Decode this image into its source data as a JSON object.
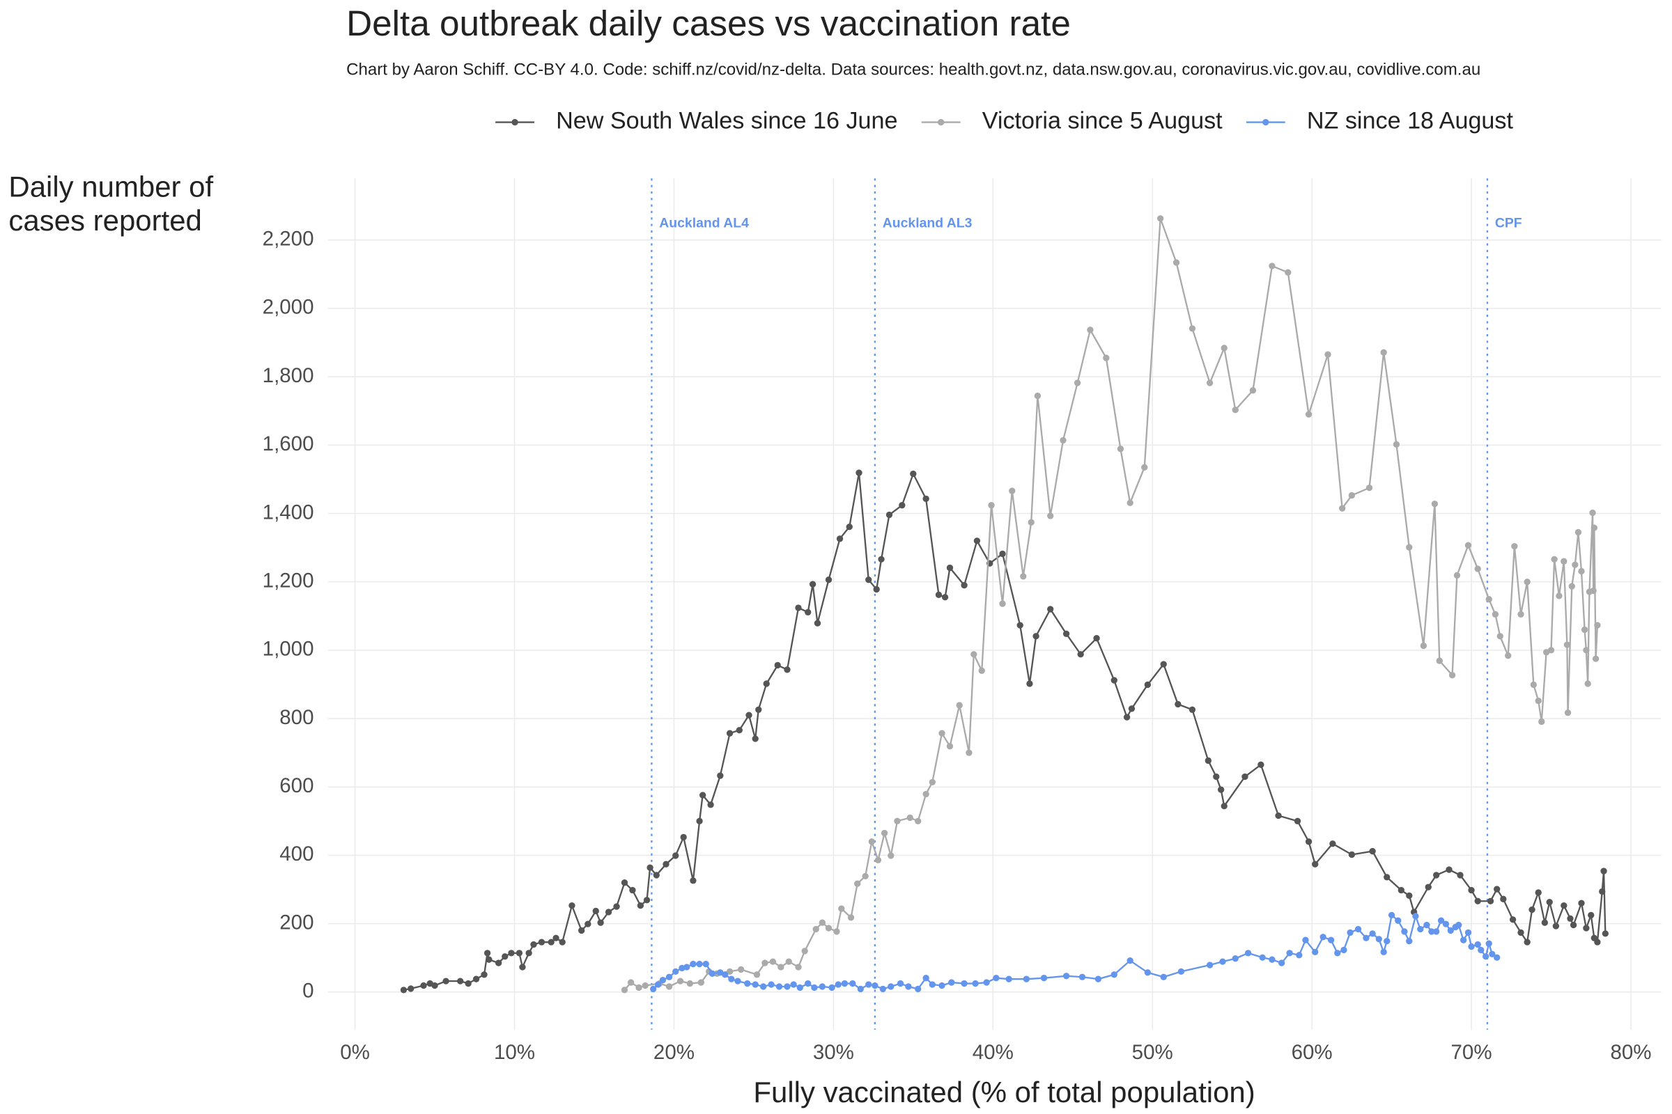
{
  "chart_data": {
    "type": "line",
    "title": "Delta outbreak daily cases vs vaccination rate",
    "subtitle": "Chart by Aaron Schiff. CC-BY 4.0. Code: schiff.nz/covid/nz-delta. Data sources: health.govt.nz, data.nsw.gov.au, coronavirus.vic.gov.au, covidlive.com.au",
    "x_label": "Fully vaccinated (% of total population)",
    "y_label": "Daily number of cases reported",
    "xlim": [
      -1.7,
      81.9
    ],
    "ylim": [
      -110,
      2380
    ],
    "xticks": [
      {
        "value": 0,
        "label": "0%"
      },
      {
        "value": 10,
        "label": "10%"
      },
      {
        "value": 20,
        "label": "20%"
      },
      {
        "value": 30,
        "label": "30%"
      },
      {
        "value": 40,
        "label": "40%"
      },
      {
        "value": 50,
        "label": "50%"
      },
      {
        "value": 60,
        "label": "60%"
      },
      {
        "value": 70,
        "label": "70%"
      },
      {
        "value": 80,
        "label": "80%"
      }
    ],
    "yticks": [
      0,
      200,
      400,
      600,
      800,
      {
        "value": 1000,
        "label": "1,000"
      },
      {
        "value": 1200,
        "label": "1,200"
      },
      {
        "value": 1400,
        "label": "1,400"
      },
      {
        "value": 1600,
        "label": "1,600"
      },
      {
        "value": 1800,
        "label": "1,800"
      },
      {
        "value": 2000,
        "label": "2,000"
      },
      {
        "value": 2200,
        "label": "2,200"
      }
    ],
    "grid": true,
    "legend": "top",
    "annotations": [
      {
        "x": 18.6,
        "label": "Auckland AL4"
      },
      {
        "x": 32.6,
        "label": "Auckland AL3"
      },
      {
        "x": 71.0,
        "label": "CPF"
      }
    ],
    "annotation_color": "#6495ed",
    "series": [
      {
        "name": "New South Wales since 16 June",
        "color": "#555555",
        "x": [
          3.05,
          3.5,
          4.3,
          4.7,
          5.0,
          5.7,
          6.6,
          7.1,
          7.6,
          8.1,
          8.3,
          8.4,
          9.0,
          9.4,
          9.8,
          10.3,
          10.5,
          10.9,
          11.2,
          11.7,
          12.3,
          12.6,
          13.0,
          13.6,
          14.2,
          14.6,
          15.1,
          15.4,
          15.9,
          16.4,
          16.9,
          17.4,
          17.9,
          18.3,
          18.5,
          18.9,
          19.5,
          20.1,
          20.6,
          21.2,
          21.6,
          21.8,
          22.3,
          22.9,
          23.5,
          24.1,
          24.7,
          25.1,
          25.3,
          25.8,
          26.5,
          27.1,
          27.8,
          28.4,
          28.7,
          29.0,
          29.7,
          30.4,
          31.0,
          31.6,
          32.2,
          32.7,
          33.0,
          33.5,
          34.3,
          35.0,
          35.8,
          36.6,
          37.0,
          37.3,
          38.2,
          39.0,
          39.8,
          40.6,
          41.7,
          42.3,
          42.7,
          43.6,
          44.6,
          45.5,
          46.5,
          47.6,
          48.4,
          48.7,
          49.7,
          50.7,
          51.6,
          52.5,
          53.5,
          54.0,
          54.3,
          54.5,
          55.8,
          56.8,
          57.9,
          59.1,
          59.8,
          60.2,
          61.3,
          62.5,
          63.8,
          64.7,
          65.6,
          66.1,
          66.4,
          67.3,
          67.8,
          68.6,
          69.3,
          70.0,
          70.4,
          71.2,
          71.6,
          72.0,
          72.6,
          73.1,
          73.5,
          73.8,
          74.2,
          74.6,
          74.9,
          75.3,
          75.8,
          76.2,
          76.4,
          76.9,
          77.2,
          77.5,
          77.7,
          77.9,
          78.2,
          78.3,
          78.4
        ],
        "values": [
          6,
          10,
          19,
          25,
          19,
          32,
          32,
          25,
          38,
          51,
          114,
          95,
          85,
          104,
          114,
          114,
          73,
          114,
          139,
          146,
          146,
          158,
          146,
          253,
          180,
          199,
          237,
          203,
          234,
          250,
          320,
          298,
          253,
          269,
          364,
          342,
          374,
          399,
          453,
          326,
          500,
          576,
          548,
          633,
          757,
          766,
          810,
          741,
          826,
          902,
          956,
          943,
          1124,
          1111,
          1193,
          1079,
          1206,
          1326,
          1361,
          1519,
          1206,
          1178,
          1266,
          1396,
          1424,
          1516,
          1443,
          1162,
          1155,
          1241,
          1190,
          1320,
          1254,
          1282,
          1073,
          902,
          1041,
          1120,
          1048,
          988,
          1035,
          912,
          804,
          829,
          899,
          959,
          842,
          826,
          677,
          630,
          592,
          544,
          630,
          665,
          516,
          500,
          440,
          374,
          434,
          402,
          412,
          336,
          298,
          282,
          234,
          307,
          342,
          358,
          342,
          298,
          266,
          266,
          301,
          272,
          212,
          174,
          146,
          241,
          291,
          203,
          263,
          193,
          253,
          215,
          196,
          260,
          187,
          225,
          158,
          146,
          294,
          354,
          171
        ]
      },
      {
        "name": "Victoria since 5 August",
        "color": "#aaaaaa",
        "x": [
          16.9,
          17.3,
          17.8,
          18.2,
          19.1,
          19.7,
          20.4,
          21.0,
          21.7,
          22.2,
          22.7,
          23.5,
          24.2,
          25.2,
          25.7,
          26.2,
          26.7,
          27.2,
          27.8,
          28.2,
          28.9,
          29.3,
          29.7,
          30.2,
          30.5,
          31.1,
          31.5,
          32.0,
          32.4,
          32.8,
          33.2,
          33.6,
          34.0,
          34.8,
          35.3,
          35.8,
          36.2,
          36.8,
          37.3,
          37.9,
          38.5,
          38.8,
          39.3,
          39.9,
          40.6,
          41.2,
          41.9,
          42.4,
          42.8,
          43.6,
          44.4,
          45.3,
          46.1,
          47.1,
          48.0,
          48.6,
          49.5,
          50.5,
          51.5,
          52.5,
          53.6,
          54.5,
          55.2,
          56.3,
          57.5,
          58.5,
          59.8,
          61.0,
          61.9,
          62.5,
          63.6,
          64.5,
          65.3,
          66.1,
          67.0,
          67.7,
          68.0,
          68.8,
          69.1,
          69.8,
          70.4,
          71.1,
          71.5,
          71.8,
          72.3,
          72.7,
          73.1,
          73.5,
          73.9,
          74.2,
          74.4,
          74.7,
          75.0,
          75.2,
          75.5,
          75.8,
          76.0,
          76.05,
          76.3,
          76.5,
          76.7,
          76.9,
          77.1,
          77.2,
          77.3,
          77.4,
          77.6,
          77.65,
          77.7,
          77.8,
          77.9
        ],
        "values": [
          6,
          28,
          13,
          19,
          25,
          16,
          32,
          25,
          28,
          60,
          54,
          60,
          66,
          51,
          85,
          89,
          73,
          89,
          73,
          120,
          184,
          203,
          187,
          177,
          244,
          218,
          317,
          339,
          440,
          386,
          465,
          399,
          500,
          510,
          500,
          579,
          614,
          757,
          719,
          839,
          700,
          988,
          940,
          1424,
          1136,
          1466,
          1216,
          1374,
          1744,
          1393,
          1614,
          1782,
          1937,
          1855,
          1589,
          1431,
          1535,
          2263,
          2134,
          1941,
          1782,
          1884,
          1703,
          1760,
          2124,
          2105,
          1690,
          1865,
          1415,
          1453,
          1475,
          1871,
          1602,
          1301,
          1013,
          1428,
          969,
          927,
          1219,
          1307,
          1238,
          1149,
          1105,
          1041,
          984,
          1304,
          1105,
          1200,
          899,
          852,
          791,
          994,
          1000,
          1266,
          1159,
          1260,
          1016,
          817,
          1187,
          1250,
          1345,
          1231,
          1060,
          1000,
          902,
          1171,
          1402,
          1174,
          1358,
          975,
          1073
        ]
      },
      {
        "name": "NZ since 18 August",
        "color": "#6495ed",
        "x": [
          18.7,
          19.0,
          19.3,
          19.7,
          20.1,
          20.5,
          20.8,
          21.2,
          21.6,
          22.0,
          22.4,
          22.9,
          23.2,
          23.6,
          24.0,
          24.6,
          25.1,
          25.6,
          26.1,
          26.6,
          27.1,
          27.5,
          27.9,
          28.4,
          28.8,
          29.3,
          29.9,
          30.3,
          30.7,
          31.2,
          31.7,
          32.2,
          32.6,
          33.1,
          33.6,
          34.2,
          34.7,
          35.3,
          35.8,
          36.2,
          36.8,
          37.4,
          38.2,
          38.9,
          39.6,
          40.2,
          41.0,
          42.1,
          43.2,
          44.6,
          45.6,
          46.6,
          47.6,
          48.6,
          49.7,
          50.7,
          51.8,
          53.6,
          54.4,
          55.2,
          56.0,
          56.9,
          57.5,
          58.1,
          58.6,
          59.2,
          59.6,
          60.2,
          60.7,
          61.2,
          61.6,
          62.0,
          62.4,
          62.9,
          63.4,
          63.8,
          64.2,
          64.5,
          64.7,
          65.0,
          65.4,
          65.8,
          66.1,
          66.5,
          66.8,
          67.2,
          67.5,
          67.8,
          68.1,
          68.4,
          68.7,
          69.0,
          69.2,
          69.5,
          69.8,
          70.0,
          70.4,
          70.6,
          70.9,
          71.1,
          71.3,
          71.6
        ],
        "values": [
          9,
          22,
          35,
          44,
          60,
          70,
          73,
          82,
          82,
          82,
          54,
          57,
          51,
          38,
          32,
          25,
          22,
          16,
          22,
          16,
          16,
          22,
          13,
          25,
          13,
          16,
          13,
          22,
          25,
          25,
          9,
          22,
          19,
          9,
          16,
          25,
          16,
          9,
          41,
          22,
          19,
          28,
          25,
          25,
          28,
          41,
          38,
          38,
          41,
          47,
          44,
          38,
          51,
          92,
          57,
          44,
          60,
          79,
          89,
          98,
          114,
          101,
          95,
          85,
          114,
          108,
          152,
          117,
          161,
          152,
          114,
          123,
          174,
          184,
          158,
          171,
          155,
          117,
          149,
          225,
          209,
          177,
          149,
          222,
          184,
          196,
          177,
          177,
          209,
          199,
          180,
          190,
          196,
          152,
          174,
          133,
          139,
          123,
          104,
          142,
          111,
          101
        ]
      }
    ]
  }
}
